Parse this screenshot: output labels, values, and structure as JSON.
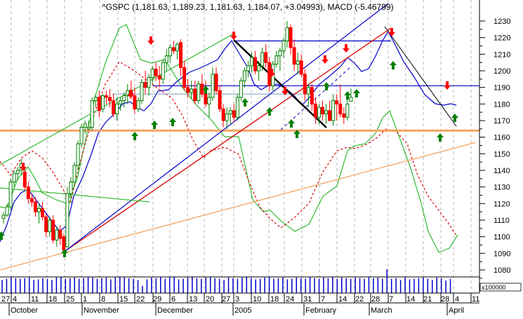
{
  "title": "^GSPC (1,181.63, 1,189.23, 1,181.63, 1,184.07, +3.04993), MACD (-5.46799)",
  "colors": {
    "background": "#ffffff",
    "grid": "#b4b4b4",
    "up_candle": "#008000",
    "down_candle": "#ff0000",
    "ma_line": "#0000cc",
    "bollinger": "#33bb33",
    "macd_signal": "#dd0000",
    "support_orange": "#f4a460",
    "volume": "#0000cc",
    "axis": "#000000",
    "trend_black": "#000000",
    "trend_blue": "#0000cc",
    "trend_red": "#dd0000",
    "trend_green": "#33bb33"
  },
  "y_axis": {
    "ticks": [
      "1230",
      "1220",
      "1210",
      "1200",
      "1190",
      "1180",
      "1170",
      "1160",
      "1150",
      "1140",
      "1130",
      "1120",
      "1110",
      "1100",
      "1090",
      "1080"
    ],
    "volume_unit": "x100000"
  },
  "x_axis": {
    "day_labels": [
      {
        "label": "27",
        "x": 2
      },
      {
        "label": "4",
        "x": 18
      },
      {
        "label": "11",
        "x": 44
      },
      {
        "label": "18",
        "x": 69
      },
      {
        "label": "25",
        "x": 94
      },
      {
        "label": "1",
        "x": 118
      },
      {
        "label": "8",
        "x": 144
      },
      {
        "label": "15",
        "x": 170
      },
      {
        "label": "22",
        "x": 194
      },
      {
        "label": "29",
        "x": 218
      },
      {
        "label": "6",
        "x": 244
      },
      {
        "label": "13",
        "x": 269
      },
      {
        "label": "20",
        "x": 293
      },
      {
        "label": "27",
        "x": 316
      },
      {
        "label": "3",
        "x": 335
      },
      {
        "label": "10",
        "x": 360
      },
      {
        "label": "18",
        "x": 385
      },
      {
        "label": "24",
        "x": 407
      },
      {
        "label": "31",
        "x": 432
      },
      {
        "label": "7",
        "x": 457
      },
      {
        "label": "14",
        "x": 482
      },
      {
        "label": "22",
        "x": 506
      },
      {
        "label": "28",
        "x": 529
      },
      {
        "label": "7",
        "x": 554
      },
      {
        "label": "14",
        "x": 579
      },
      {
        "label": "21",
        "x": 603
      },
      {
        "label": "28",
        "x": 628
      },
      {
        "label": "4",
        "x": 648
      },
      {
        "label": "11",
        "x": 672
      }
    ],
    "month_labels": [
      {
        "label": "October",
        "x": 16
      },
      {
        "label": "November",
        "x": 120
      },
      {
        "label": "December",
        "x": 225
      },
      {
        "label": "2005",
        "x": 335
      },
      {
        "label": "February",
        "x": 436
      },
      {
        "label": "March",
        "x": 529
      },
      {
        "label": "April",
        "x": 640
      }
    ]
  },
  "chart_data": {
    "type": "candlestick",
    "title": "^GSPC (1,181.63, 1,189.23, 1,181.63, 1,184.07, +3.04993), MACD (-5.46799)",
    "symbol": "^GSPC",
    "last_bar": {
      "open": 1181.63,
      "high": 1189.23,
      "low": 1181.63,
      "close": 1184.07,
      "change": 3.04993
    },
    "macd": -5.46799,
    "ylim": [
      1075,
      1235
    ],
    "y_ticks": [
      1080,
      1090,
      1100,
      1110,
      1120,
      1130,
      1140,
      1150,
      1160,
      1170,
      1180,
      1190,
      1200,
      1210,
      1220,
      1230
    ],
    "x_range": "Sep 27 2004 – Apr 11 2005",
    "grid": true,
    "horizontal_lines": [
      {
        "name": "support",
        "price": 1164,
        "color": "#f4a460"
      },
      {
        "name": "resistance",
        "price": 1191,
        "color": "#0000cc"
      },
      {
        "name": "top",
        "price": 1218,
        "color": "#0000cc"
      },
      {
        "name": "nov-level",
        "price": 1186,
        "color": "#7799bb"
      }
    ],
    "candles": [
      [
        1111,
        1115,
        1108,
        1113
      ],
      [
        1113,
        1120,
        1112,
        1118
      ],
      [
        1118,
        1135,
        1116,
        1133
      ],
      [
        1133,
        1140,
        1130,
        1138
      ],
      [
        1138,
        1142,
        1134,
        1140
      ],
      [
        1140,
        1147,
        1137,
        1144
      ],
      [
        1139,
        1142,
        1128,
        1130
      ],
      [
        1130,
        1133,
        1120,
        1123
      ],
      [
        1123,
        1126,
        1118,
        1121
      ],
      [
        1121,
        1124,
        1112,
        1115
      ],
      [
        1115,
        1120,
        1108,
        1117
      ],
      [
        1117,
        1121,
        1110,
        1112
      ],
      [
        1112,
        1114,
        1100,
        1103
      ],
      [
        1103,
        1112,
        1100,
        1110
      ],
      [
        1110,
        1113,
        1096,
        1098
      ],
      [
        1098,
        1106,
        1094,
        1104
      ],
      [
        1104,
        1107,
        1095,
        1099
      ],
      [
        1100,
        1102,
        1090,
        1092
      ],
      [
        1094,
        1130,
        1093,
        1126
      ],
      [
        1126,
        1136,
        1120,
        1133
      ],
      [
        1133,
        1145,
        1130,
        1143
      ],
      [
        1143,
        1158,
        1140,
        1156
      ],
      [
        1156,
        1168,
        1154,
        1166
      ],
      [
        1166,
        1170,
        1162,
        1168
      ],
      [
        1165,
        1170,
        1164,
        1166
      ],
      [
        1166,
        1184,
        1164,
        1182
      ],
      [
        1182,
        1186,
        1178,
        1184
      ],
      [
        1184,
        1188,
        1172,
        1176
      ],
      [
        1177,
        1186,
        1175,
        1185
      ],
      [
        1185,
        1188,
        1180,
        1184
      ],
      [
        1184,
        1189,
        1178,
        1182
      ],
      [
        1182,
        1186,
        1172,
        1174
      ],
      [
        1174,
        1184,
        1170,
        1180
      ],
      [
        1180,
        1184,
        1176,
        1182
      ],
      [
        1182,
        1187,
        1178,
        1185
      ],
      [
        1185,
        1192,
        1180,
        1188
      ],
      [
        1188,
        1194,
        1183,
        1185
      ],
      [
        1185,
        1190,
        1174,
        1177
      ],
      [
        1177,
        1184,
        1175,
        1182
      ],
      [
        1182,
        1195,
        1180,
        1193
      ],
      [
        1193,
        1200,
        1186,
        1190
      ],
      [
        1190,
        1198,
        1185,
        1196
      ],
      [
        1196,
        1203,
        1192,
        1201
      ],
      [
        1201,
        1205,
        1194,
        1197
      ],
      [
        1197,
        1203,
        1190,
        1195
      ],
      [
        1195,
        1207,
        1192,
        1205
      ],
      [
        1205,
        1213,
        1200,
        1209
      ],
      [
        1209,
        1216,
        1205,
        1214
      ],
      [
        1214,
        1218,
        1210,
        1212
      ],
      [
        1212,
        1217,
        1207,
        1216
      ],
      [
        1217,
        1219,
        1197,
        1202
      ],
      [
        1202,
        1206,
        1188,
        1190
      ],
      [
        1190,
        1195,
        1184,
        1187
      ],
      [
        1187,
        1194,
        1183,
        1189
      ],
      [
        1189,
        1194,
        1180,
        1182
      ],
      [
        1182,
        1194,
        1180,
        1192
      ],
      [
        1192,
        1198,
        1184,
        1186
      ],
      [
        1186,
        1194,
        1178,
        1180
      ],
      [
        1180,
        1187,
        1172,
        1184
      ],
      [
        1184,
        1202,
        1182,
        1198
      ],
      [
        1198,
        1202,
        1186,
        1188
      ],
      [
        1188,
        1191,
        1175,
        1177
      ],
      [
        1177,
        1180,
        1166,
        1170
      ],
      [
        1170,
        1178,
        1165,
        1174
      ],
      [
        1174,
        1178,
        1168,
        1176
      ],
      [
        1176,
        1180,
        1169,
        1172
      ],
      [
        1172,
        1186,
        1170,
        1184
      ],
      [
        1184,
        1196,
        1182,
        1194
      ],
      [
        1194,
        1202,
        1190,
        1200
      ],
      [
        1200,
        1206,
        1196,
        1203
      ],
      [
        1203,
        1211,
        1199,
        1208
      ],
      [
        1208,
        1212,
        1198,
        1200
      ],
      [
        1200,
        1206,
        1194,
        1203
      ],
      [
        1203,
        1214,
        1200,
        1211
      ],
      [
        1211,
        1216,
        1202,
        1205
      ],
      [
        1205,
        1208,
        1188,
        1191
      ],
      [
        1191,
        1206,
        1188,
        1204
      ],
      [
        1204,
        1212,
        1202,
        1209
      ],
      [
        1209,
        1214,
        1200,
        1212
      ],
      [
        1212,
        1220,
        1208,
        1218
      ],
      [
        1218,
        1230,
        1214,
        1226
      ],
      [
        1226,
        1228,
        1210,
        1214
      ],
      [
        1214,
        1219,
        1200,
        1204
      ],
      [
        1204,
        1211,
        1198,
        1206
      ],
      [
        1206,
        1210,
        1196,
        1198
      ],
      [
        1198,
        1201,
        1182,
        1186
      ],
      [
        1186,
        1192,
        1178,
        1190
      ],
      [
        1190,
        1192,
        1176,
        1180
      ],
      [
        1180,
        1184,
        1168,
        1172
      ],
      [
        1172,
        1180,
        1168,
        1178
      ],
      [
        1178,
        1182,
        1170,
        1174
      ],
      [
        1174,
        1180,
        1168,
        1176
      ],
      [
        1176,
        1182,
        1170,
        1170
      ],
      [
        1170,
        1186,
        1167,
        1182
      ],
      [
        1182,
        1186,
        1170,
        1180
      ],
      [
        1180,
        1192,
        1172,
        1174
      ],
      [
        1174,
        1178,
        1168,
        1172
      ],
      [
        1172,
        1184,
        1170,
        1180
      ],
      [
        1181.63,
        1189.23,
        1181.63,
        1184.07
      ]
    ],
    "candle_x_start": 3,
    "candle_x_step": 5.05,
    "volume": [
      22,
      24,
      26,
      25,
      24,
      25,
      26,
      22,
      23,
      25,
      24,
      22,
      26,
      27,
      24,
      25,
      26,
      24,
      25,
      27,
      26,
      24,
      25,
      26,
      23,
      26,
      27,
      26,
      25,
      24,
      22,
      12,
      23,
      26,
      25,
      27,
      24,
      26,
      27,
      23,
      24,
      26,
      27,
      25,
      24,
      26,
      27,
      25,
      24,
      22,
      26,
      25,
      24,
      26,
      27,
      25,
      23,
      24,
      26,
      27,
      24,
      25,
      26,
      23,
      24,
      26,
      25,
      24,
      27,
      25,
      24,
      26,
      25,
      27,
      24,
      26,
      25,
      24,
      26,
      25,
      24,
      27,
      25,
      26,
      24,
      40,
      24,
      25,
      22,
      26,
      23,
      24,
      25,
      26,
      24,
      22,
      26,
      25,
      21,
      24
    ],
    "volume_bar_x_start": 3,
    "volume_bar_x_step": 6.45,
    "bollinger_upper": [
      [
        0,
        295
      ],
      [
        10,
        297
      ],
      [
        25,
        255
      ],
      [
        40,
        238
      ],
      [
        50,
        255
      ],
      [
        60,
        275
      ],
      [
        80,
        285
      ],
      [
        95,
        290
      ],
      [
        110,
        255
      ],
      [
        125,
        185
      ],
      [
        135,
        140
      ],
      [
        150,
        90
      ],
      [
        170,
        40
      ],
      [
        180,
        35
      ],
      [
        200,
        85
      ],
      [
        215,
        90
      ],
      [
        235,
        85
      ],
      [
        260,
        125
      ],
      [
        280,
        150
      ],
      [
        300,
        170
      ],
      [
        320,
        195
      ],
      [
        340,
        195
      ],
      [
        350,
        240
      ],
      [
        360,
        285
      ],
      [
        375,
        302
      ],
      [
        385,
        300
      ],
      [
        400,
        315
      ],
      [
        420,
        330
      ],
      [
        440,
        320
      ],
      [
        460,
        280
      ],
      [
        480,
        265
      ],
      [
        495,
        215
      ],
      [
        505,
        208
      ],
      [
        520,
        205
      ],
      [
        535,
        190
      ],
      [
        545,
        168
      ],
      [
        555,
        158
      ],
      [
        565,
        185
      ],
      [
        585,
        240
      ],
      [
        600,
        290
      ],
      [
        610,
        330
      ],
      [
        625,
        360
      ],
      [
        630,
        358
      ],
      [
        640,
        354
      ],
      [
        652,
        335
      ]
    ],
    "macd_signal_points": [
      [
        0,
        230
      ],
      [
        15,
        250
      ],
      [
        30,
        226
      ],
      [
        45,
        215
      ],
      [
        60,
        225
      ],
      [
        75,
        245
      ],
      [
        90,
        270
      ],
      [
        100,
        290
      ],
      [
        110,
        248
      ],
      [
        120,
        210
      ],
      [
        135,
        160
      ],
      [
        150,
        120
      ],
      [
        170,
        88
      ],
      [
        190,
        100
      ],
      [
        210,
        115
      ],
      [
        230,
        130
      ],
      [
        245,
        140
      ],
      [
        260,
        165
      ],
      [
        275,
        200
      ],
      [
        290,
        225
      ],
      [
        300,
        215
      ],
      [
        320,
        210
      ],
      [
        340,
        220
      ],
      [
        355,
        260
      ],
      [
        370,
        295
      ],
      [
        385,
        312
      ],
      [
        400,
        325
      ],
      [
        420,
        310
      ],
      [
        440,
        290
      ],
      [
        460,
        245
      ],
      [
        480,
        215
      ],
      [
        495,
        210
      ],
      [
        505,
        212
      ],
      [
        520,
        207
      ],
      [
        535,
        198
      ],
      [
        550,
        184
      ],
      [
        565,
        188
      ],
      [
        580,
        205
      ],
      [
        595,
        250
      ],
      [
        610,
        280
      ],
      [
        625,
        300
      ],
      [
        640,
        320
      ],
      [
        650,
        336
      ]
    ],
    "ma_line_points": [
      [
        0,
        345
      ],
      [
        10,
        320
      ],
      [
        20,
        288
      ],
      [
        30,
        275
      ],
      [
        40,
        270
      ],
      [
        55,
        290
      ],
      [
        70,
        310
      ],
      [
        85,
        330
      ],
      [
        95,
        322
      ],
      [
        105,
        280
      ],
      [
        118,
        252
      ],
      [
        130,
        220
      ],
      [
        140,
        190
      ],
      [
        150,
        175
      ],
      [
        165,
        160
      ],
      [
        175,
        148
      ],
      [
        185,
        145
      ],
      [
        195,
        153
      ],
      [
        205,
        158
      ],
      [
        215,
        148
      ],
      [
        225,
        130
      ],
      [
        240,
        128
      ],
      [
        250,
        118
      ],
      [
        260,
        110
      ],
      [
        270,
        103
      ],
      [
        285,
        97
      ],
      [
        300,
        90
      ],
      [
        310,
        85
      ],
      [
        320,
        70
      ],
      [
        330,
        58
      ],
      [
        340,
        75
      ],
      [
        352,
        95
      ],
      [
        362,
        120
      ],
      [
        372,
        128
      ],
      [
        382,
        122
      ],
      [
        395,
        120
      ],
      [
        405,
        125
      ],
      [
        418,
        135
      ],
      [
        430,
        150
      ],
      [
        440,
        140
      ],
      [
        455,
        120
      ],
      [
        470,
        108
      ],
      [
        485,
        95
      ],
      [
        495,
        82
      ],
      [
        505,
        90
      ],
      [
        515,
        102
      ],
      [
        525,
        98
      ],
      [
        535,
        80
      ],
      [
        545,
        58
      ],
      [
        553,
        45
      ],
      [
        565,
        68
      ],
      [
        575,
        88
      ],
      [
        590,
        110
      ],
      [
        605,
        135
      ],
      [
        620,
        148
      ],
      [
        632,
        150
      ],
      [
        642,
        148
      ],
      [
        650,
        150
      ]
    ]
  }
}
